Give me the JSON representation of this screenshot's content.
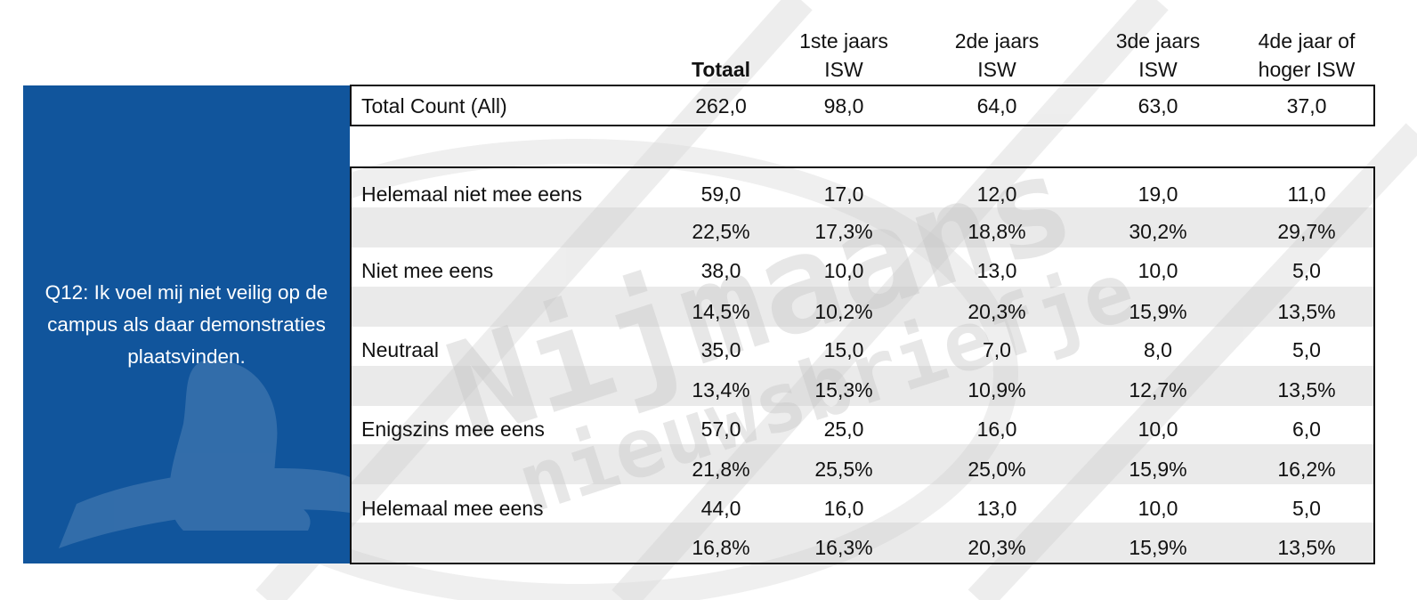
{
  "columns": [
    {
      "line1": "",
      "line2": "Totaal"
    },
    {
      "line1": "1ste jaars",
      "line2": "ISW"
    },
    {
      "line1": "2de jaars",
      "line2": "ISW"
    },
    {
      "line1": "3de jaars",
      "line2": "ISW"
    },
    {
      "line1": "4de jaar of",
      "line2": "hoger ISW"
    }
  ],
  "question": "Q12: Ik voel mij niet veilig op de campus als daar demonstraties plaatsvinden.",
  "total_row": {
    "label": "Total Count (All)",
    "values": [
      "262,0",
      "98,0",
      "64,0",
      "63,0",
      "37,0"
    ]
  },
  "responses": [
    {
      "label": "Helemaal niet mee eens",
      "counts": [
        "59,0",
        "17,0",
        "12,0",
        "19,0",
        "11,0"
      ],
      "percents": [
        "22,5%",
        "17,3%",
        "18,8%",
        "30,2%",
        "29,7%"
      ]
    },
    {
      "label": "Niet mee eens",
      "counts": [
        "38,0",
        "10,0",
        "13,0",
        "10,0",
        "5,0"
      ],
      "percents": [
        "14,5%",
        "10,2%",
        "20,3%",
        "15,9%",
        "13,5%"
      ]
    },
    {
      "label": "Neutraal",
      "counts": [
        "35,0",
        "15,0",
        "7,0",
        "8,0",
        "5,0"
      ],
      "percents": [
        "13,4%",
        "15,3%",
        "10,9%",
        "12,7%",
        "13,5%"
      ]
    },
    {
      "label": "Enigszins mee eens",
      "counts": [
        "57,0",
        "25,0",
        "16,0",
        "10,0",
        "6,0"
      ],
      "percents": [
        "21,8%",
        "25,5%",
        "25,0%",
        "15,9%",
        "16,2%"
      ]
    },
    {
      "label": "Helemaal mee eens",
      "counts": [
        "44,0",
        "16,0",
        "13,0",
        "10,0",
        "5,0"
      ],
      "percents": [
        "16,8%",
        "16,3%",
        "20,3%",
        "15,9%",
        "13,5%"
      ]
    }
  ],
  "watermark": {
    "line1": "Nijmaans",
    "line2": "nieuwsbriefje"
  }
}
